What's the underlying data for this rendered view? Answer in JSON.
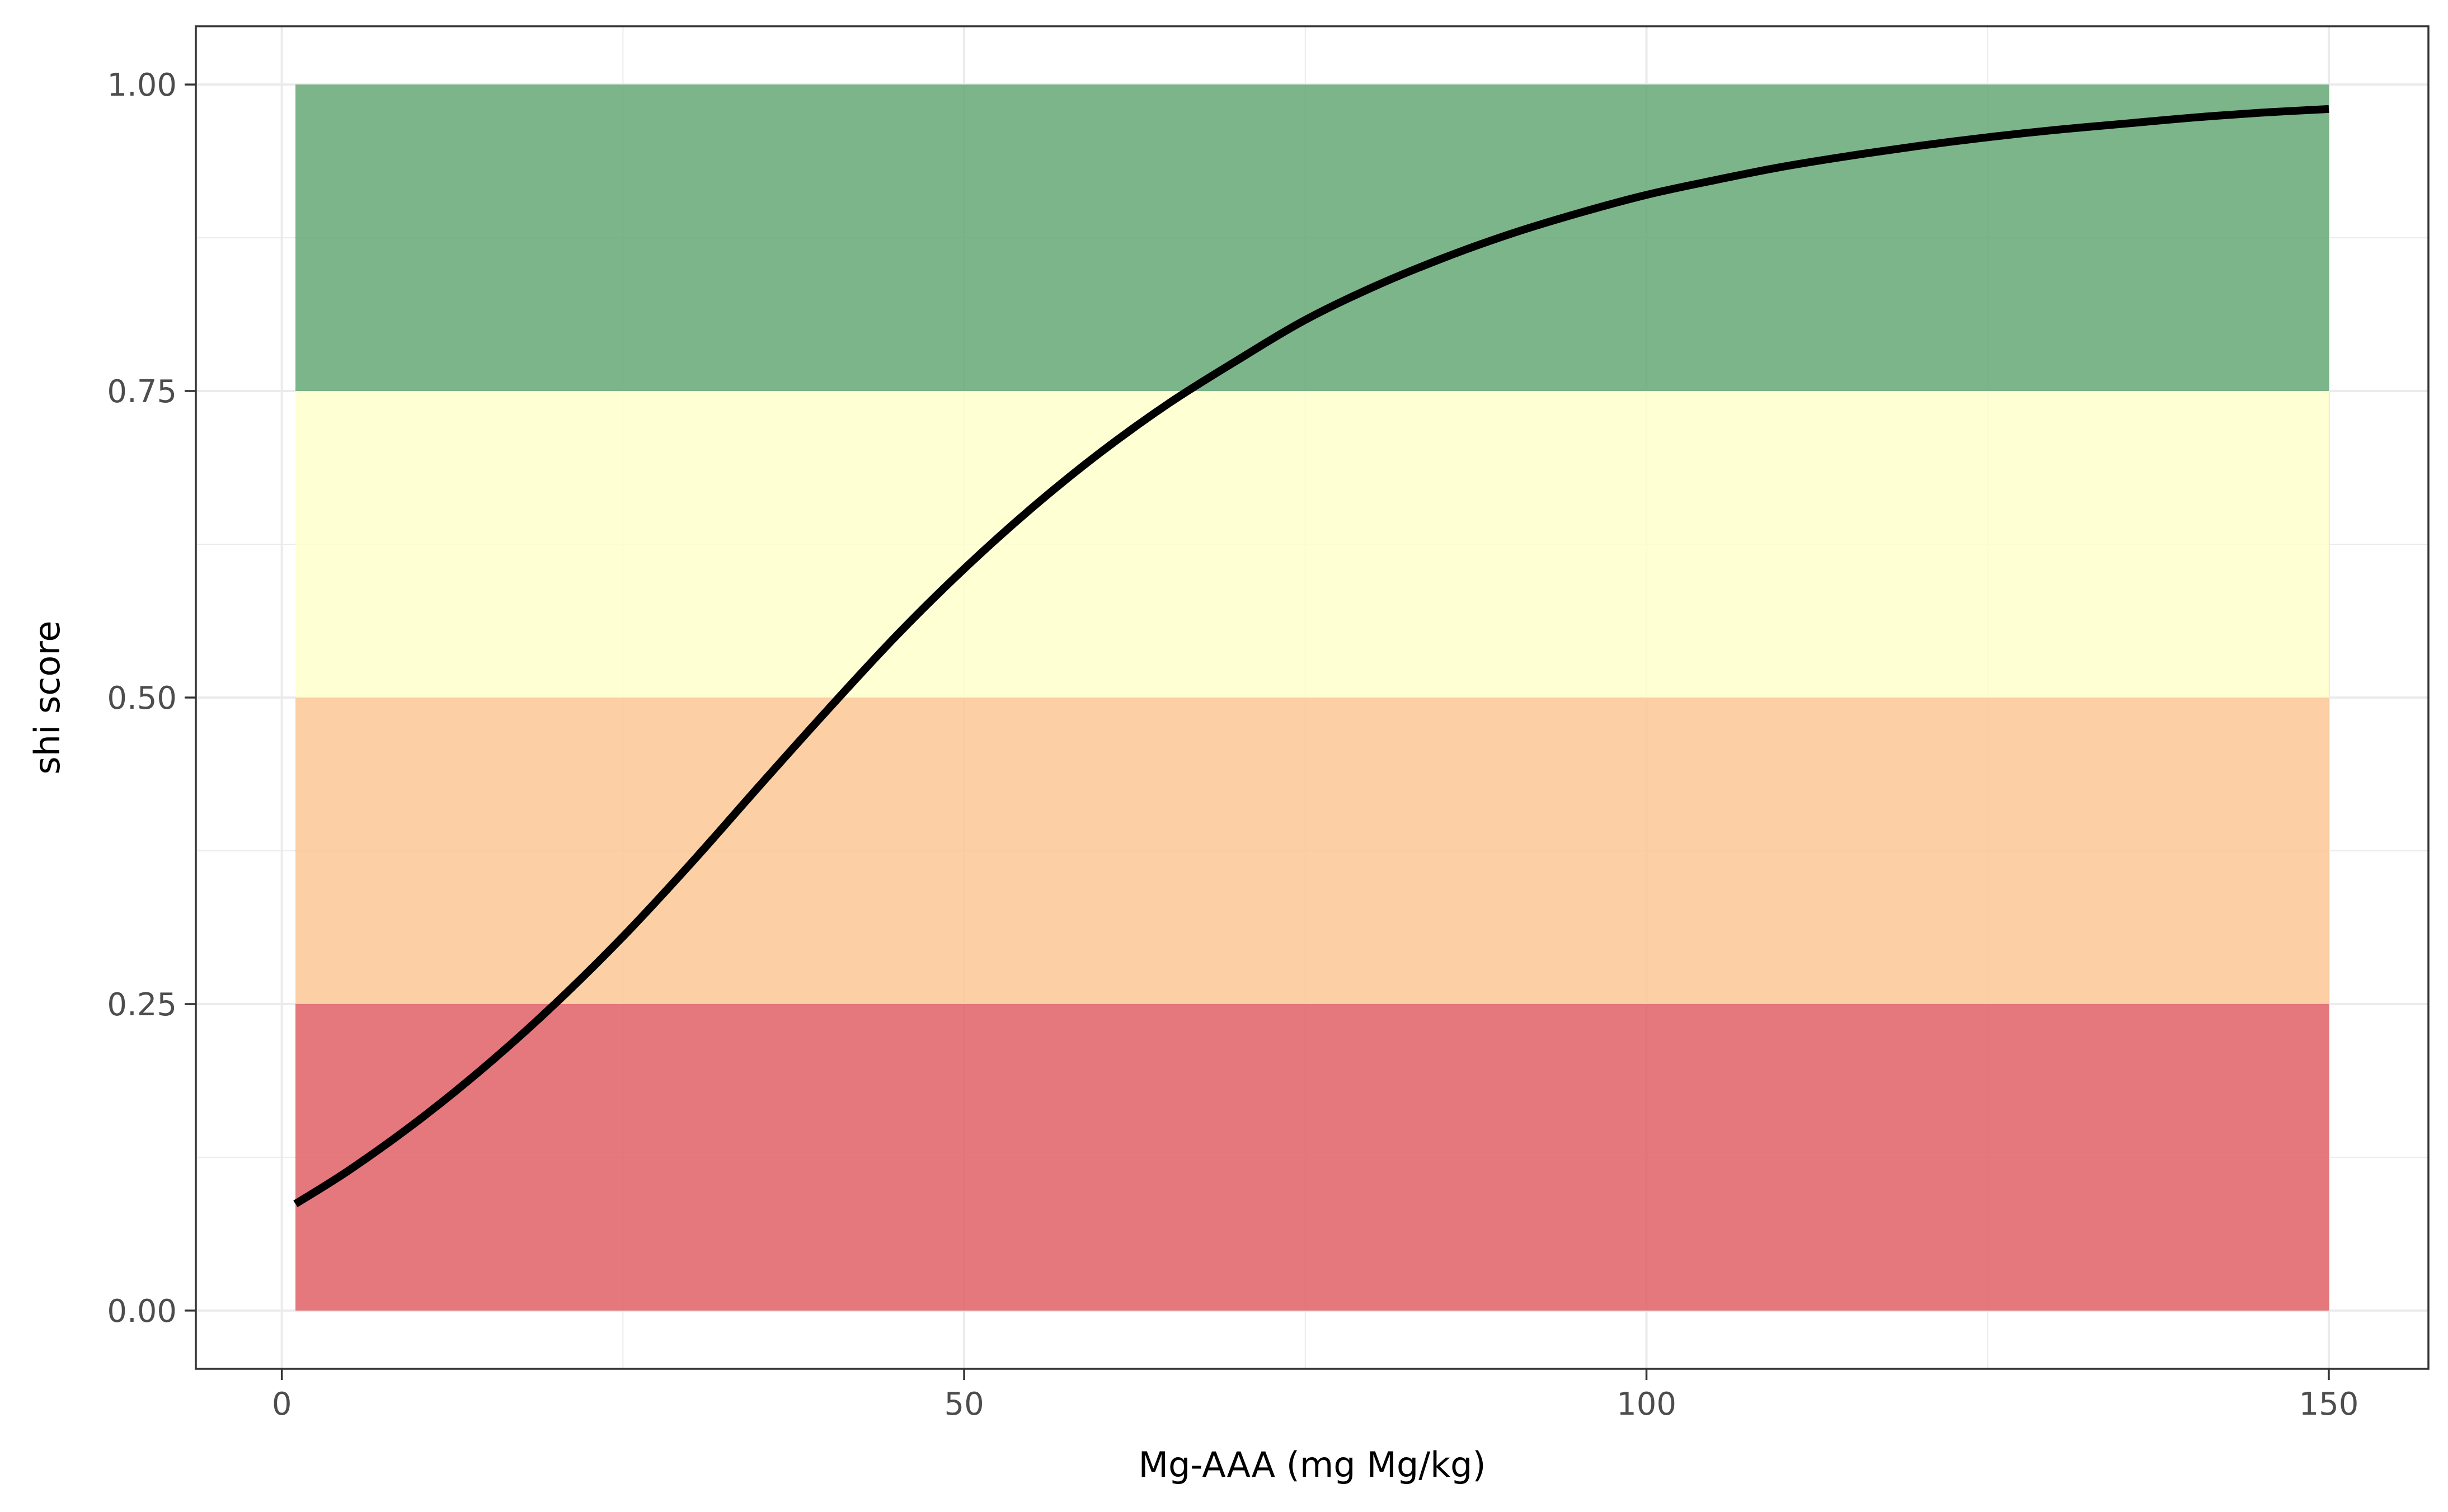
{
  "chart_data": {
    "type": "line",
    "title": "",
    "xlabel": "Mg-AAA (mg Mg/kg)",
    "ylabel": "shi score",
    "xlim": [
      -6.3,
      157.3
    ],
    "ylim": [
      -0.0475,
      1.0475
    ],
    "x_ticks": [
      0,
      50,
      100,
      150
    ],
    "x_tick_labels": [
      "0",
      "50",
      "100",
      "150"
    ],
    "y_ticks": [
      0,
      0.25,
      0.5,
      0.75,
      1
    ],
    "y_tick_labels": [
      "0.00",
      "0.25",
      "0.50",
      "0.75",
      "1.00"
    ],
    "grid": true,
    "bands": [
      {
        "x": [
          1,
          150
        ],
        "y": [
          0,
          0.25
        ],
        "color": "#e06066"
      },
      {
        "x": [
          1,
          150
        ],
        "y": [
          0.25,
          0.5
        ],
        "color": "#fcc894"
      },
      {
        "x": [
          1,
          150
        ],
        "y": [
          0.5,
          0.75
        ],
        "color": "#ffffcc"
      },
      {
        "x": [
          1,
          150
        ],
        "y": [
          0.75,
          1
        ],
        "color": "#66a875"
      }
    ],
    "series": [
      {
        "color": "#000000",
        "x": [
          1,
          5,
          10,
          15,
          20,
          25,
          30,
          35,
          40,
          45,
          50,
          55,
          60,
          65,
          70,
          75,
          80,
          85,
          90,
          95,
          100,
          105,
          110,
          115,
          120,
          125,
          130,
          135,
          140,
          145,
          150
        ],
        "y": [
          0.087,
          0.115,
          0.155,
          0.2,
          0.25,
          0.305,
          0.365,
          0.428,
          0.49,
          0.55,
          0.605,
          0.655,
          0.7,
          0.74,
          0.775,
          0.808,
          0.835,
          0.858,
          0.878,
          0.895,
          0.91,
          0.922,
          0.933,
          0.942,
          0.95,
          0.957,
          0.963,
          0.968,
          0.973,
          0.977,
          0.98
        ]
      }
    ]
  }
}
